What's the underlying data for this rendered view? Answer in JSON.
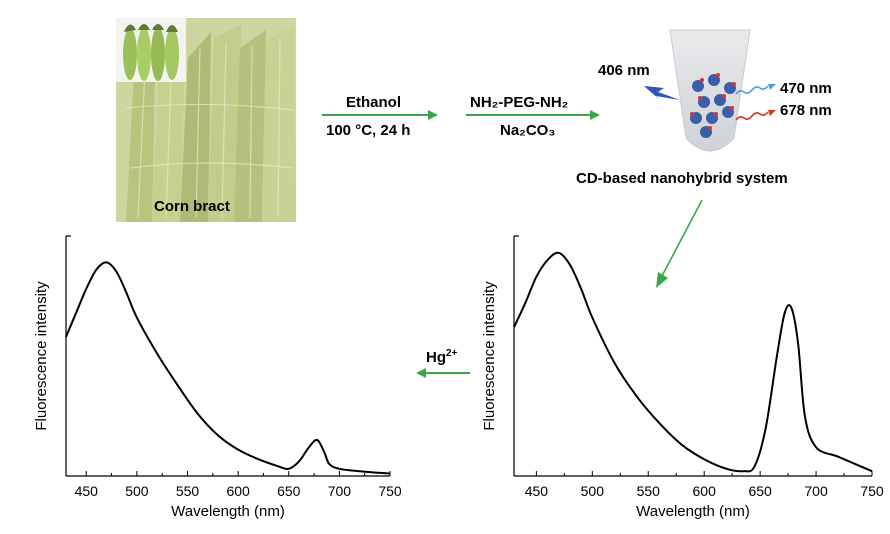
{
  "photo": {
    "caption": "Corn bract"
  },
  "step1": {
    "top": "Ethanol",
    "bottom": "100 °C, 24 h"
  },
  "step2": {
    "top": "NH₂-PEG-NH₂",
    "bottom": "Na₂CO₃"
  },
  "nanohybrid": {
    "excitation": "406 nm",
    "emission_blue": "470 nm",
    "emission_red": "678 nm",
    "caption": "CD-based nanohybrid system"
  },
  "reagent": {
    "label": "Hg",
    "charge": "2+"
  },
  "colors": {
    "arrow": "#3aa64a",
    "blue_emission": "#4aa3d8",
    "red_emission": "#d9342b",
    "dots": "#3b5ea8"
  },
  "chart_data": [
    {
      "type": "line",
      "title": "",
      "xlabel": "Wavelength (nm)",
      "ylabel": "Fluorescence intensity",
      "xlim": [
        430,
        750
      ],
      "ylim": [
        0,
        1
      ],
      "xticks": [
        "450",
        "500",
        "550",
        "600",
        "650",
        "700",
        "750"
      ],
      "series": [
        {
          "x": [
            430,
            440,
            450,
            460,
            470,
            480,
            490,
            500,
            520,
            540,
            560,
            580,
            600,
            620,
            640,
            650,
            660,
            670,
            678,
            685,
            690,
            700,
            720,
            750
          ],
          "y": [
            0.58,
            0.68,
            0.78,
            0.86,
            0.89,
            0.85,
            0.76,
            0.66,
            0.51,
            0.38,
            0.26,
            0.17,
            0.11,
            0.07,
            0.04,
            0.03,
            0.06,
            0.12,
            0.15,
            0.1,
            0.05,
            0.03,
            0.02,
            0.01
          ]
        }
      ]
    },
    {
      "type": "line",
      "title": "",
      "xlabel": "Wavelength (nm)",
      "ylabel": "Fluorescence intensity",
      "xlim": [
        430,
        750
      ],
      "ylim": [
        0,
        1
      ],
      "xticks": [
        "450",
        "500",
        "550",
        "600",
        "650",
        "700",
        "750"
      ],
      "series": [
        {
          "x": [
            430,
            440,
            450,
            460,
            470,
            480,
            490,
            500,
            520,
            540,
            560,
            580,
            600,
            620,
            635,
            645,
            655,
            665,
            672,
            678,
            684,
            690,
            700,
            720,
            740,
            750
          ],
          "y": [
            0.62,
            0.72,
            0.83,
            0.9,
            0.93,
            0.88,
            0.78,
            0.66,
            0.47,
            0.33,
            0.22,
            0.13,
            0.07,
            0.03,
            0.02,
            0.04,
            0.2,
            0.5,
            0.68,
            0.7,
            0.55,
            0.25,
            0.12,
            0.08,
            0.04,
            0.02
          ]
        }
      ]
    }
  ]
}
